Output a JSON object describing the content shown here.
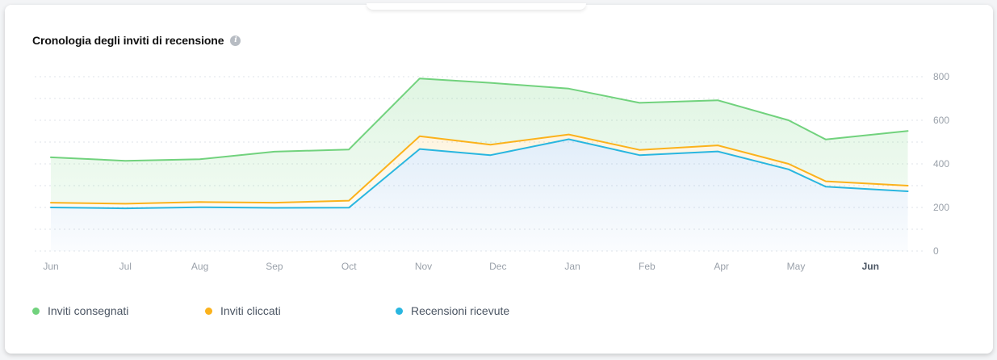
{
  "title": "Cronologia degli inviti di recensione",
  "info_icon": "info-icon",
  "colors": {
    "delivered": "#71d27d",
    "clicked": "#fbb21c",
    "received": "#29b6e0",
    "grid": "#dfe3e8",
    "axis_text": "#9aa1aa"
  },
  "chart_data": {
    "type": "area",
    "title": "Cronologia degli inviti di recensione",
    "x": [
      "Jun",
      "Jul",
      "Aug",
      "Sep",
      "Oct",
      "Nov",
      "Dec",
      "Jan",
      "Feb",
      "Apr",
      "May",
      "Jun"
    ],
    "x_bold_index": 11,
    "y_ticks": [
      0,
      200,
      400,
      600,
      800
    ],
    "ylim": [
      0,
      800
    ],
    "grid": true,
    "legend_position": "bottom-left",
    "series": [
      {
        "name": "Inviti consegnati",
        "color": "#71d27d",
        "points": [
          [
            0,
            430
          ],
          [
            1,
            414
          ],
          [
            2,
            421
          ],
          [
            3,
            456
          ],
          [
            4,
            466
          ],
          [
            4.95,
            792
          ],
          [
            5.9,
            772
          ],
          [
            6.95,
            745
          ],
          [
            7.9,
            680
          ],
          [
            8.95,
            692
          ],
          [
            9.9,
            600
          ],
          [
            10.4,
            512
          ],
          [
            11.5,
            551
          ]
        ]
      },
      {
        "name": "Inviti cliccati",
        "color": "#fbb21c",
        "points": [
          [
            0,
            222
          ],
          [
            1,
            217
          ],
          [
            2,
            225
          ],
          [
            3,
            222
          ],
          [
            4,
            231
          ],
          [
            4.95,
            527
          ],
          [
            5.9,
            488
          ],
          [
            6.95,
            535
          ],
          [
            7.9,
            464
          ],
          [
            8.95,
            485
          ],
          [
            9.9,
            400
          ],
          [
            10.4,
            320
          ],
          [
            11.5,
            300
          ]
        ]
      },
      {
        "name": "Recensioni ricevute",
        "color": "#29b6e0",
        "points": [
          [
            0,
            200
          ],
          [
            1,
            196
          ],
          [
            2,
            201
          ],
          [
            3,
            198
          ],
          [
            4,
            199
          ],
          [
            4.95,
            468
          ],
          [
            5.9,
            440
          ],
          [
            6.95,
            513
          ],
          [
            7.9,
            440
          ],
          [
            8.95,
            457
          ],
          [
            9.9,
            375
          ],
          [
            10.4,
            295
          ],
          [
            11.5,
            274
          ]
        ]
      }
    ]
  }
}
